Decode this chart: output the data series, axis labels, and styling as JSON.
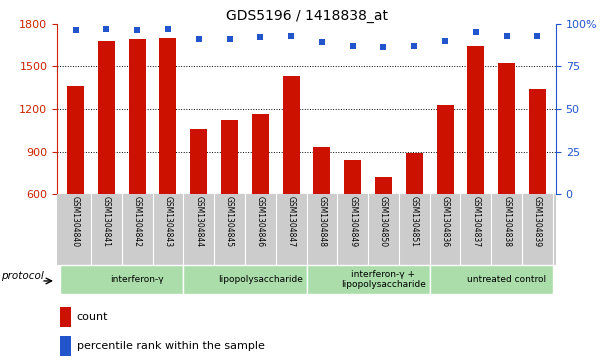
{
  "title": "GDS5196 / 1418838_at",
  "samples": [
    "GSM1304840",
    "GSM1304841",
    "GSM1304842",
    "GSM1304843",
    "GSM1304844",
    "GSM1304845",
    "GSM1304846",
    "GSM1304847",
    "GSM1304848",
    "GSM1304849",
    "GSM1304850",
    "GSM1304851",
    "GSM1304836",
    "GSM1304837",
    "GSM1304838",
    "GSM1304839"
  ],
  "counts": [
    1360,
    1680,
    1690,
    1700,
    1060,
    1120,
    1165,
    1430,
    930,
    840,
    720,
    890,
    1230,
    1640,
    1520,
    1340
  ],
  "percentile_ranks": [
    96,
    97,
    96,
    97,
    91,
    91,
    92,
    93,
    89,
    87,
    86,
    87,
    90,
    95,
    93,
    93
  ],
  "ylim_left": [
    600,
    1800
  ],
  "ylim_right": [
    0,
    100
  ],
  "yticks_left": [
    600,
    900,
    1200,
    1500,
    1800
  ],
  "yticks_right": [
    0,
    25,
    50,
    75,
    100
  ],
  "bar_color": "#cc1100",
  "dot_color": "#2255cc",
  "groups": [
    {
      "label": "interferon-γ",
      "start": 0,
      "end": 4
    },
    {
      "label": "lipopolysaccharide",
      "start": 4,
      "end": 8
    },
    {
      "label": "interferon-γ +\nlipopolysaccharide",
      "start": 8,
      "end": 12
    },
    {
      "label": "untreated control",
      "start": 12,
      "end": 16
    }
  ],
  "group_color": "#aaddaa",
  "protocol_label": "protocol",
  "legend_count_label": "count",
  "legend_percentile_label": "percentile rank within the sample",
  "left_axis_color": "#cc2200",
  "right_axis_color": "#2255cc",
  "plot_bg_color": "#ffffff",
  "xlabel_bg_color": "#cccccc"
}
